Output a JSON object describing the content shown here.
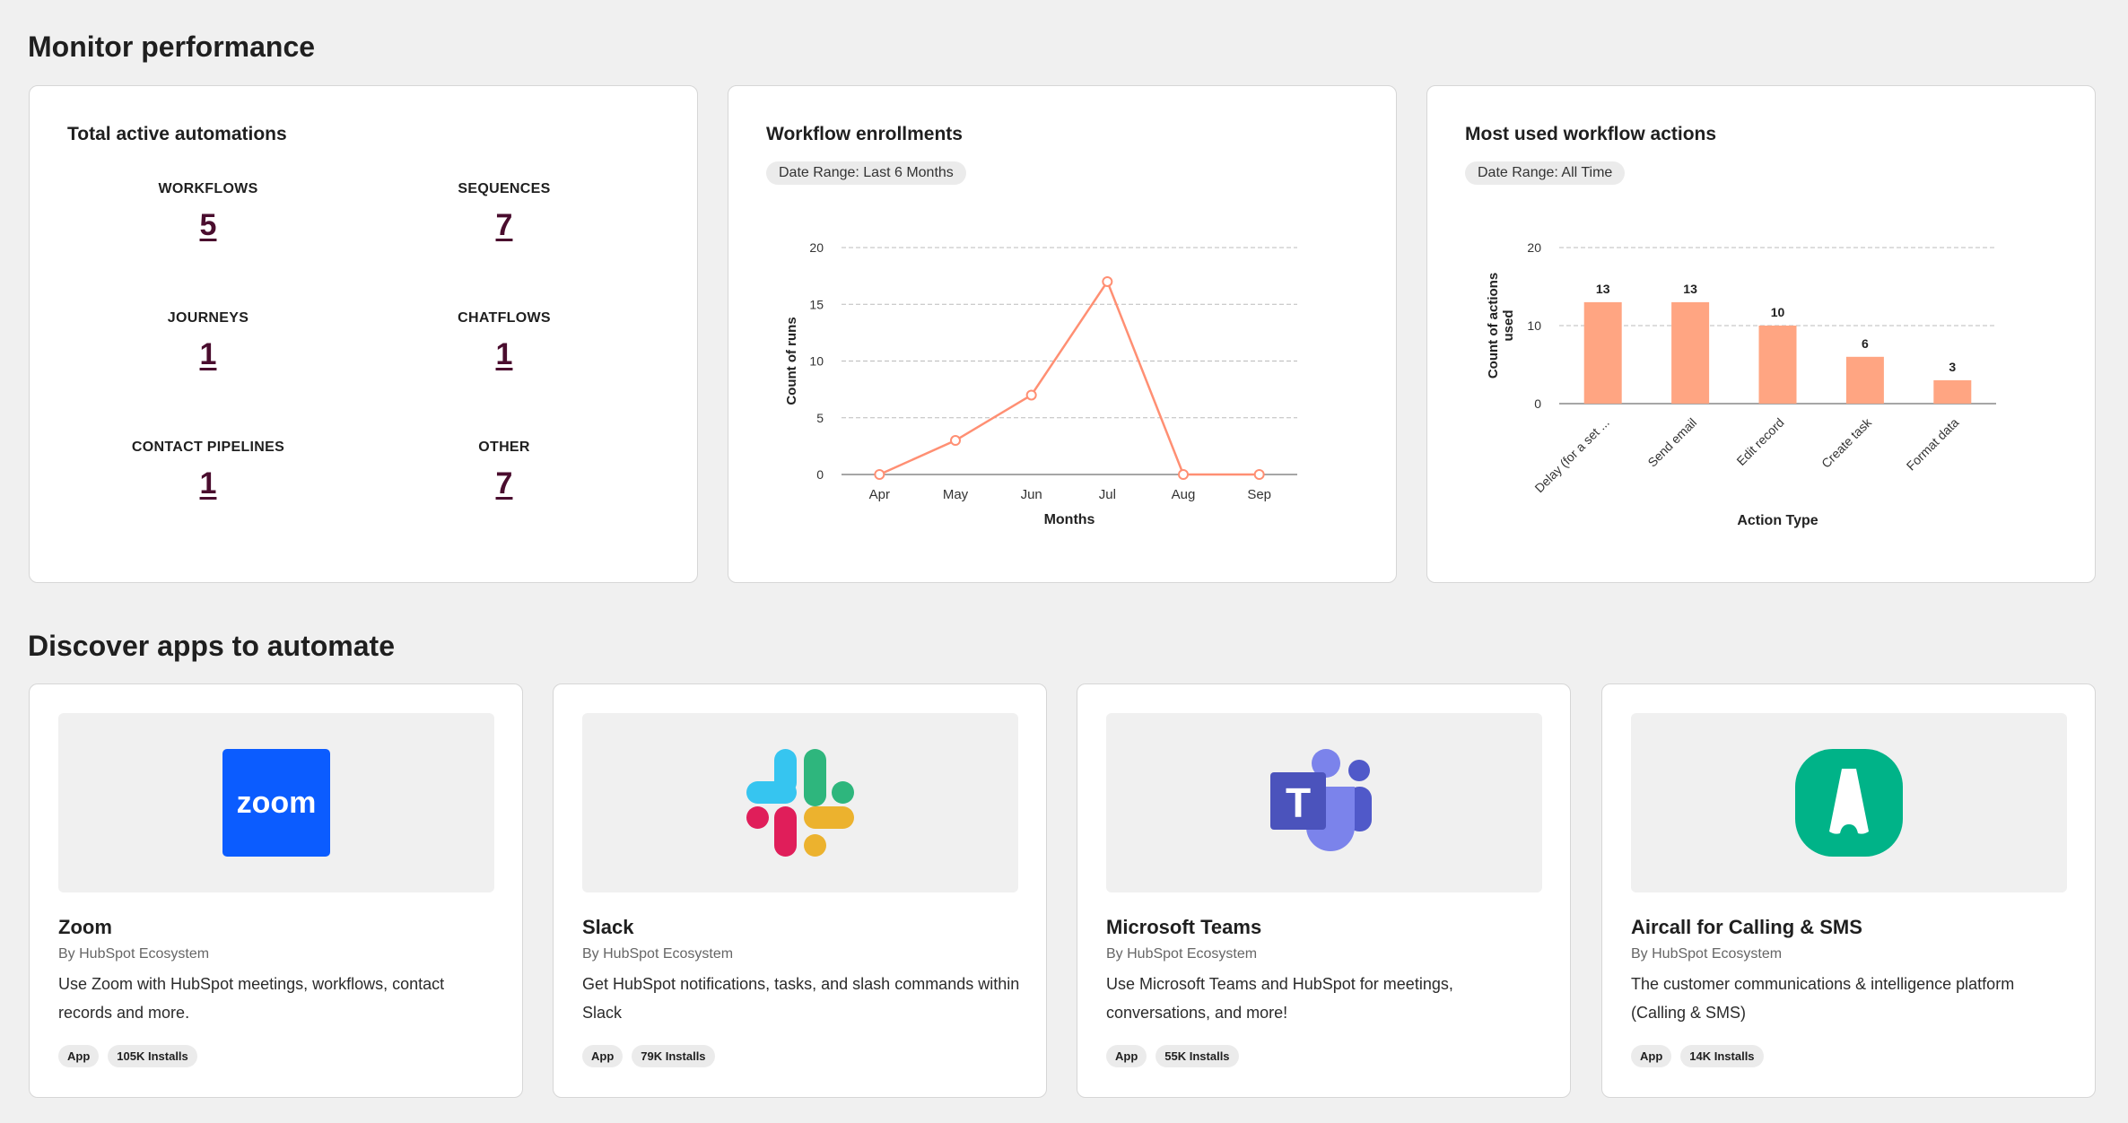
{
  "monitor": {
    "heading": "Monitor performance",
    "automations": {
      "title": "Total active automations",
      "stats": [
        {
          "label": "WORKFLOWS",
          "value": "5"
        },
        {
          "label": "SEQUENCES",
          "value": "7"
        },
        {
          "label": "JOURNEYS",
          "value": "1"
        },
        {
          "label": "CHATFLOWS",
          "value": "1"
        },
        {
          "label": "CONTACT PIPELINES",
          "value": "1"
        },
        {
          "label": "OTHER",
          "value": "7"
        }
      ]
    },
    "enrollments": {
      "title": "Workflow enrollments",
      "date_range": "Date Range: Last 6 Months"
    },
    "actions": {
      "title": "Most used workflow actions",
      "date_range": "Date Range: All Time"
    }
  },
  "chart_data": [
    {
      "type": "line",
      "categories": [
        "Apr",
        "May",
        "Jun",
        "Jul",
        "Aug",
        "Sep"
      ],
      "values": [
        0,
        3,
        7,
        17,
        0,
        0
      ],
      "xlabel": "Months",
      "ylabel": "Count of runs",
      "ylim": [
        0,
        20
      ],
      "yticks": [
        0,
        5,
        10,
        15,
        20
      ],
      "grid": true,
      "color": "#ff8f73"
    },
    {
      "type": "bar",
      "categories": [
        "Delay (for a set ...",
        "Send email",
        "Edit record",
        "Create task",
        "Format data"
      ],
      "values": [
        13,
        13,
        10,
        6,
        3
      ],
      "xlabel": "Action Type",
      "ylabel": "Count of actions used",
      "ylim": [
        0,
        20
      ],
      "yticks": [
        0,
        10,
        20
      ],
      "grid": true,
      "color": "#ffa582",
      "data_labels": true
    }
  ],
  "discover": {
    "heading": "Discover apps to automate",
    "apps": [
      {
        "name": "Zoom",
        "by": "By HubSpot Ecosystem",
        "desc": "Use Zoom with HubSpot meetings, workflows, contact records and more.",
        "type": "App",
        "installs": "105K Installs",
        "logo": "zoom-logo",
        "logo_text": "zoom"
      },
      {
        "name": "Slack",
        "by": "By HubSpot Ecosystem",
        "desc": "Get HubSpot notifications, tasks, and slash commands within Slack",
        "type": "App",
        "installs": "79K Installs",
        "logo": "slack-logo"
      },
      {
        "name": "Microsoft Teams",
        "by": "By HubSpot Ecosystem",
        "desc": "Use Microsoft Teams and HubSpot for meetings, conversations, and more!",
        "type": "App",
        "installs": "55K Installs",
        "logo": "teams-logo",
        "logo_text": "T"
      },
      {
        "name": "Aircall for Calling & SMS",
        "by": "By HubSpot Ecosystem",
        "desc": "The customer communications & intelligence platform (Calling & SMS)",
        "type": "App",
        "installs": "14K Installs",
        "logo": "aircall-logo"
      }
    ]
  }
}
